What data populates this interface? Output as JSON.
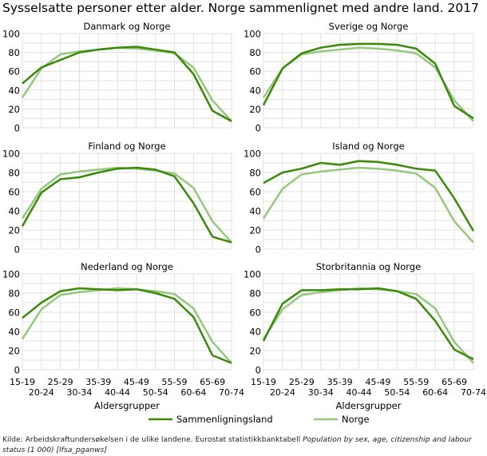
{
  "title": "Sysselsatte personer etter alder. Norge sammenlignet med andre land. 2017",
  "source": {
    "text": "Kilde: Arbeidskraftundersøkelsen i de ulike landene. Eurostat statistikkbanktabell ",
    "italic": "Population by sex, age, citizenship and labour status (1 000) [lfsa_pganws]"
  },
  "chart_data": [
    {
      "type": "line",
      "title": "Danmark og Norge",
      "categories": [
        "15-19",
        "20-24",
        "25-29",
        "30-34",
        "35-39",
        "40-44",
        "45-49",
        "50-54",
        "55-59",
        "60-64",
        "65-69",
        "70-74"
      ],
      "ylim": [
        0,
        100
      ],
      "yticks": [
        0,
        20,
        40,
        60,
        80,
        100
      ],
      "grid": true,
      "series": [
        {
          "name": "Sammenligningsland",
          "values": [
            47,
            64,
            72,
            80,
            83,
            85,
            86,
            83,
            80,
            57,
            18,
            7
          ]
        },
        {
          "name": "Norge",
          "values": [
            32,
            63,
            78,
            81,
            83,
            85,
            84,
            82,
            79,
            64,
            29,
            7
          ]
        }
      ]
    },
    {
      "type": "line",
      "title": "Sverige og Norge",
      "categories": [
        "15-19",
        "20-24",
        "25-29",
        "30-34",
        "35-39",
        "40-44",
        "45-49",
        "50-54",
        "55-59",
        "60-64",
        "65-69",
        "70-74"
      ],
      "ylim": [
        0,
        100
      ],
      "yticks": [
        0,
        20,
        40,
        60,
        80,
        100
      ],
      "grid": true,
      "series": [
        {
          "name": "Sammenligningsland",
          "values": [
            24,
            63,
            79,
            85,
            88,
            89,
            89,
            88,
            84,
            68,
            23,
            10
          ]
        },
        {
          "name": "Norge",
          "values": [
            32,
            63,
            78,
            81,
            83,
            85,
            84,
            82,
            79,
            64,
            29,
            7
          ]
        }
      ]
    },
    {
      "type": "line",
      "title": "Finland og Norge",
      "categories": [
        "15-19",
        "20-24",
        "25-29",
        "30-34",
        "35-39",
        "40-44",
        "45-49",
        "50-54",
        "55-59",
        "60-64",
        "65-69",
        "70-74"
      ],
      "ylim": [
        0,
        100
      ],
      "yticks": [
        0,
        20,
        40,
        60,
        80,
        100
      ],
      "grid": true,
      "series": [
        {
          "name": "Sammenligningsland",
          "values": [
            24,
            59,
            73,
            75,
            80,
            84,
            85,
            83,
            76,
            48,
            13,
            7
          ]
        },
        {
          "name": "Norge",
          "values": [
            32,
            63,
            78,
            81,
            83,
            85,
            84,
            82,
            79,
            64,
            29,
            7
          ]
        }
      ]
    },
    {
      "type": "line",
      "title": "Island og Norge",
      "categories": [
        "15-19",
        "20-24",
        "25-29",
        "30-34",
        "35-39",
        "40-44",
        "45-49",
        "50-54",
        "55-59",
        "60-64",
        "65-69",
        "70-74"
      ],
      "ylim": [
        0,
        100
      ],
      "yticks": [
        0,
        20,
        40,
        60,
        80,
        100
      ],
      "grid": true,
      "series": [
        {
          "name": "Sammenligningsland",
          "values": [
            69,
            80,
            84,
            90,
            88,
            92,
            91,
            88,
            84,
            82,
            53,
            19
          ]
        },
        {
          "name": "Norge",
          "values": [
            32,
            63,
            78,
            81,
            83,
            85,
            84,
            82,
            79,
            64,
            29,
            7
          ]
        }
      ]
    },
    {
      "type": "line",
      "title": "Nederland og Norge",
      "categories": [
        "15-19",
        "20-24",
        "25-29",
        "30-34",
        "35-39",
        "40-44",
        "45-49",
        "50-54",
        "55-59",
        "60-64",
        "65-69",
        "70-74"
      ],
      "ylim": [
        0,
        100
      ],
      "yticks": [
        0,
        20,
        40,
        60,
        80,
        100
      ],
      "grid": true,
      "xlabel": "Aldersgrupper",
      "series": [
        {
          "name": "Sammenligningsland",
          "values": [
            54,
            70,
            82,
            85,
            84,
            83,
            84,
            80,
            74,
            55,
            15,
            7
          ]
        },
        {
          "name": "Norge",
          "values": [
            32,
            63,
            78,
            81,
            83,
            85,
            84,
            82,
            79,
            64,
            29,
            7
          ]
        }
      ]
    },
    {
      "type": "line",
      "title": "Storbritannia og Norge",
      "categories": [
        "15-19",
        "20-24",
        "25-29",
        "30-34",
        "35-39",
        "40-44",
        "45-49",
        "50-54",
        "55-59",
        "60-64",
        "65-69",
        "70-74"
      ],
      "ylim": [
        0,
        100
      ],
      "yticks": [
        0,
        20,
        40,
        60,
        80,
        100
      ],
      "grid": true,
      "xlabel": "Aldersgrupper",
      "series": [
        {
          "name": "Sammenligningsland",
          "values": [
            30,
            69,
            83,
            83,
            84,
            84,
            85,
            82,
            74,
            51,
            21,
            11
          ]
        },
        {
          "name": "Norge",
          "values": [
            32,
            63,
            78,
            81,
            83,
            85,
            84,
            82,
            79,
            64,
            29,
            7
          ]
        }
      ]
    }
  ],
  "legend": {
    "placement": "bottom",
    "items": [
      "Sammenligningsland",
      "Norge"
    ]
  },
  "colors": {
    "Sammenligningsland": "#3a8a0a",
    "Norge": "#96c77e",
    "grid": "#e0e0e0"
  }
}
